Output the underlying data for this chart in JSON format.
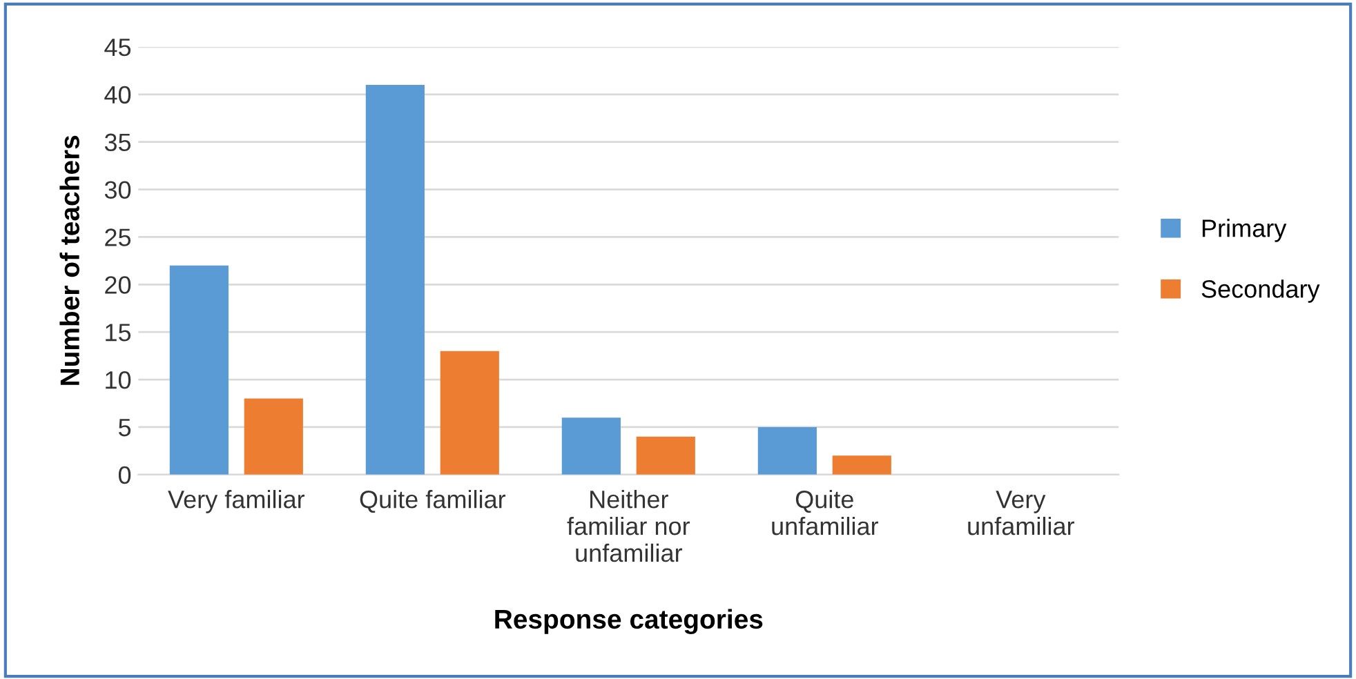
{
  "chart_data": {
    "type": "bar",
    "xlabel": "Response categories",
    "ylabel": "Number of teachers",
    "categories": [
      "Very familiar",
      "Quite familiar",
      "Neither\nfamiliar nor\nunfamiliar",
      "Quite\nunfamiliar",
      "Very\nunfamiliar"
    ],
    "series": [
      {
        "name": "Primary",
        "color": "#5b9bd5",
        "values": [
          22,
          41,
          6,
          5,
          0
        ]
      },
      {
        "name": "Secondary",
        "color": "#ed7d31",
        "values": [
          8,
          13,
          4,
          2,
          0
        ]
      }
    ],
    "ylim": [
      0,
      45
    ],
    "yticks": [
      0,
      5,
      10,
      15,
      20,
      25,
      30,
      35,
      40,
      45
    ],
    "grid": "y",
    "legend": "right"
  }
}
